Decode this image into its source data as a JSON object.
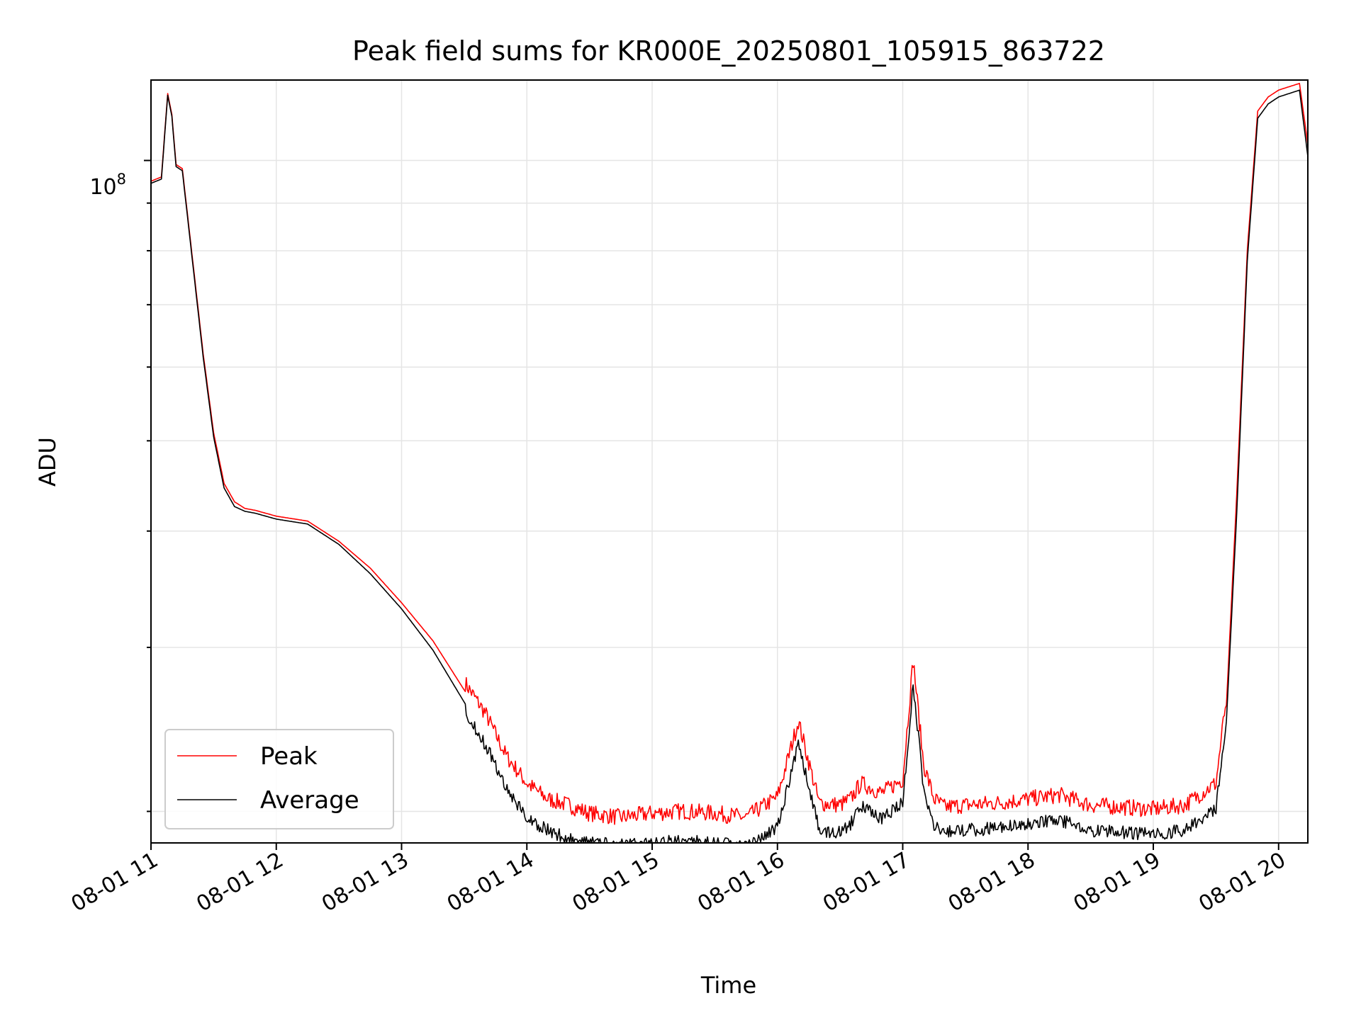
{
  "chart_data": {
    "type": "line",
    "title": "Peak field sums for KR000E_20250801_105915_863722",
    "xlabel": "Time",
    "ylabel": "ADU",
    "yscale": "log",
    "grid": true,
    "legend_position": "lower-left",
    "xlim": [
      "2025-08-01 11:00",
      "2025-08-01 20:14"
    ],
    "ylim": [
      18500000,
      122000000
    ],
    "x_ticks": [
      "08-01 11",
      "08-01 12",
      "08-01 13",
      "08-01 14",
      "08-01 15",
      "08-01 16",
      "08-01 17",
      "08-01 18",
      "08-01 19",
      "08-01 20"
    ],
    "y_tick_label": {
      "base": "10",
      "exponent": "8"
    },
    "colors": {
      "peak": "#ff0000",
      "average": "#000000",
      "grid": "#e5e5e5"
    },
    "series": [
      {
        "name": "Peak",
        "x": [
          "11:00",
          "11:05",
          "11:08",
          "11:10",
          "11:12",
          "11:15",
          "11:20",
          "11:25",
          "11:30",
          "11:35",
          "11:40",
          "11:45",
          "11:50",
          "12:00",
          "12:15",
          "12:30",
          "12:45",
          "13:00",
          "13:15",
          "13:30",
          "13:40",
          "13:50",
          "14:00",
          "14:10",
          "14:20",
          "14:30",
          "14:45",
          "15:00",
          "15:15",
          "15:30",
          "15:45",
          "16:00",
          "16:10",
          "16:20",
          "16:30",
          "16:35",
          "16:40",
          "16:50",
          "17:00",
          "17:05",
          "17:10",
          "17:15",
          "17:20",
          "17:30",
          "17:45",
          "18:00",
          "18:15",
          "18:30",
          "18:45",
          "19:00",
          "19:15",
          "19:30",
          "19:35",
          "19:40",
          "19:45",
          "19:50",
          "19:55",
          "20:00",
          "20:10",
          "20:14"
        ],
        "y": [
          95000000,
          96000000,
          118000000,
          112000000,
          99000000,
          98000000,
          78000000,
          62000000,
          51000000,
          45000000,
          43000000,
          42300000,
          42100000,
          41500000,
          41000000,
          39000000,
          36500000,
          33500000,
          30500000,
          27000000,
          25000000,
          22500000,
          21000000,
          20200000,
          19900000,
          19500000,
          19300000,
          19500000,
          19600000,
          19500000,
          19300000,
          20300000,
          24500000,
          20000000,
          19900000,
          20200000,
          21000000,
          20500000,
          21200000,
          28500000,
          22000000,
          20200000,
          19800000,
          19900000,
          20000000,
          20200000,
          20400000,
          19900000,
          19800000,
          19700000,
          19900000,
          21000000,
          26000000,
          44000000,
          80000000,
          113000000,
          117000000,
          119000000,
          121000000,
          104000000
        ]
      },
      {
        "name": "Average",
        "x": [
          "11:00",
          "11:05",
          "11:08",
          "11:10",
          "11:12",
          "11:15",
          "11:20",
          "11:25",
          "11:30",
          "11:35",
          "11:40",
          "11:45",
          "11:50",
          "12:00",
          "12:15",
          "12:30",
          "12:45",
          "13:00",
          "13:15",
          "13:30",
          "13:40",
          "13:50",
          "14:00",
          "14:10",
          "14:20",
          "14:30",
          "14:45",
          "15:00",
          "15:15",
          "15:30",
          "15:45",
          "16:00",
          "16:10",
          "16:20",
          "16:30",
          "16:35",
          "16:40",
          "16:50",
          "17:00",
          "17:05",
          "17:10",
          "17:15",
          "17:20",
          "17:30",
          "17:45",
          "18:00",
          "18:15",
          "18:30",
          "18:45",
          "19:00",
          "19:15",
          "19:30",
          "19:35",
          "19:40",
          "19:45",
          "19:50",
          "19:55",
          "20:00",
          "20:10",
          "20:14"
        ],
        "y": [
          94500000,
          95500000,
          117500000,
          111500000,
          98500000,
          97500000,
          77500000,
          61500000,
          50500000,
          44500000,
          42500000,
          42000000,
          41800000,
          41200000,
          40700000,
          38700000,
          36000000,
          33000000,
          29800000,
          26200000,
          24000000,
          21600000,
          20000000,
          19400000,
          19000000,
          18800000,
          18700000,
          18800000,
          18900000,
          18800000,
          18600000,
          19500000,
          24000000,
          19400000,
          19300000,
          19700000,
          20600000,
          19900000,
          20800000,
          27800000,
          21500000,
          19700000,
          19300000,
          19400000,
          19500000,
          19700000,
          19900000,
          19400000,
          19300000,
          19200000,
          19400000,
          20500000,
          25000000,
          42000000,
          78000000,
          111000000,
          115000000,
          117000000,
          119000000,
          101000000
        ]
      }
    ]
  }
}
